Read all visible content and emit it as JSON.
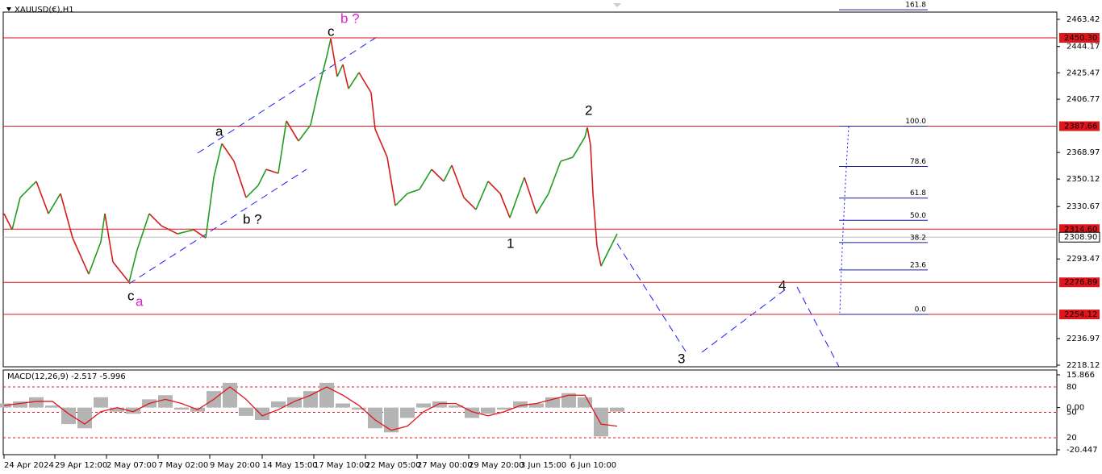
{
  "header": {
    "symbol": "XAUUSD(€),H1"
  },
  "chart_data": [
    {
      "type": "price",
      "wave_labels": [
        "b ?",
        "c",
        "a",
        "b ?",
        "c",
        "a",
        "1",
        "2",
        "3",
        "4"
      ],
      "x": [
        0,
        10,
        20,
        40,
        55,
        70,
        85,
        105,
        120,
        125,
        135,
        155,
        165,
        180,
        195,
        215,
        235,
        250,
        260,
        270,
        285,
        300,
        315,
        325,
        340,
        350,
        365,
        380,
        390,
        400,
        405,
        413,
        420,
        427,
        440,
        455,
        460,
        475,
        485,
        500,
        515,
        530,
        545,
        555,
        570,
        585,
        600,
        615,
        627,
        645,
        660,
        675,
        690,
        705,
        720,
        723,
        727,
        730,
        735,
        740,
        750,
        760
      ],
      "values": [
        2325.6,
        2314.2,
        2337.0,
        2348.5,
        2325.6,
        2339.9,
        2308.4,
        2282.7,
        2305.6,
        2325.6,
        2291.3,
        2277.0,
        2299.9,
        2325.6,
        2317.0,
        2311.3,
        2314.2,
        2308.4,
        2351.3,
        2375.3,
        2362.8,
        2337.0,
        2345.6,
        2357.0,
        2354.2,
        2391.4,
        2377.1,
        2388.5,
        2414.2,
        2437.1,
        2449.7,
        2422.8,
        2431.4,
        2414.2,
        2425.7,
        2411.4,
        2385.6,
        2365.6,
        2331.3,
        2339.9,
        2342.8,
        2357.0,
        2348.5,
        2359.9,
        2337.0,
        2328.5,
        2348.5,
        2339.9,
        2322.7,
        2351.3,
        2325.6,
        2339.9,
        2362.8,
        2365.6,
        2379.9,
        2386.8,
        2374.2,
        2339.9,
        2302.7,
        2288.4,
        2299.9,
        2311.3
      ],
      "up_color": "#1f9e1f",
      "down_color": "#d41c1c",
      "xlim": [
        0,
        1305
      ],
      "xticks": [
        {
          "value": 0,
          "label": "24 Apr 2024"
        },
        {
          "value": 63,
          "label": "29 Apr 12:00"
        },
        {
          "value": 127,
          "label": "2 May 07:00"
        },
        {
          "value": 191,
          "label": "7 May 02:00"
        },
        {
          "value": 255,
          "label": "9 May 20:00"
        },
        {
          "value": 320,
          "label": "14 May 15:00"
        },
        {
          "value": 384,
          "label": "17 May 10:00"
        },
        {
          "value": 448,
          "label": "22 May 05:00"
        },
        {
          "value": 512,
          "label": "27 May 00:00"
        },
        {
          "value": 576,
          "label": "29 May 20:00"
        },
        {
          "value": 640,
          "label": "3 Jun 15:00"
        },
        {
          "value": 702,
          "label": "6 Jun 10:00"
        }
      ],
      "ylim": [
        2216.98,
        2468.57
      ],
      "yticks": [
        2463.42,
        2444.17,
        2425.47,
        2406.77,
        2368.97,
        2350.12,
        2330.67,
        2293.47,
        2236.97,
        2218.12
      ],
      "levels": [
        {
          "value": 2450.3,
          "label": "2450.30"
        },
        2387.66,
        {
          "value": 2314.6,
          "label": "2314.60"
        },
        2276.89,
        2254.12
      ],
      "level_color": "#e0161c",
      "current_price": {
        "value": 2308.9,
        "label": "2308.90"
      },
      "fib_levels": [
        161.8,
        {
          "value": 100,
          "label": "100.0"
        },
        78.6,
        61.8,
        {
          "value": 50,
          "label": "50.0"
        },
        38.2,
        23.6,
        {
          "value": 0,
          "label": "0.0"
        }
      ],
      "fib_color": "#1a1a9c"
    },
    {
      "type": "macd",
      "title": "MACD(12,26,9) -2.517 -5.996",
      "x": [
        0,
        20,
        40,
        60,
        80,
        100,
        120,
        140,
        160,
        180,
        200,
        220,
        240,
        260,
        280,
        300,
        320,
        340,
        360,
        380,
        400,
        420,
        440,
        460,
        480,
        500,
        520,
        540,
        560,
        580,
        600,
        620,
        640,
        660,
        680,
        700,
        720,
        740,
        760
      ],
      "histogram": [
        2,
        3,
        5,
        1,
        -8,
        -10,
        5,
        -2,
        -3,
        4,
        6,
        -1,
        -2,
        8,
        12,
        -4,
        -6,
        3,
        5,
        8,
        12,
        2,
        -1,
        -10,
        -12,
        -5,
        2,
        3,
        1,
        -5,
        -3,
        -1,
        3,
        2,
        5,
        7,
        5,
        -14,
        -2
      ],
      "signal": [
        1,
        2,
        3,
        3,
        -3,
        -8,
        -2,
        0,
        -2,
        2,
        4,
        2,
        -1,
        4,
        10,
        4,
        -4,
        -1,
        3,
        6,
        10,
        6,
        1,
        -6,
        -11,
        -9,
        -2,
        2,
        2,
        -2,
        -4,
        -2,
        1,
        2,
        4,
        6,
        6,
        -8,
        -9
      ],
      "histogram_color": "#b4b4b4",
      "signal_color": "#e0161c",
      "xlim": [
        0,
        1305
      ],
      "ylim": [
        -22.8,
        18.2
      ],
      "yticks": [
        15.866,
        {
          "value": 0,
          "label": "0.00"
        },
        -20.447
      ],
      "y2lim": [
        0,
        100
      ],
      "y2ticks": [
        80,
        50,
        20
      ]
    }
  ]
}
